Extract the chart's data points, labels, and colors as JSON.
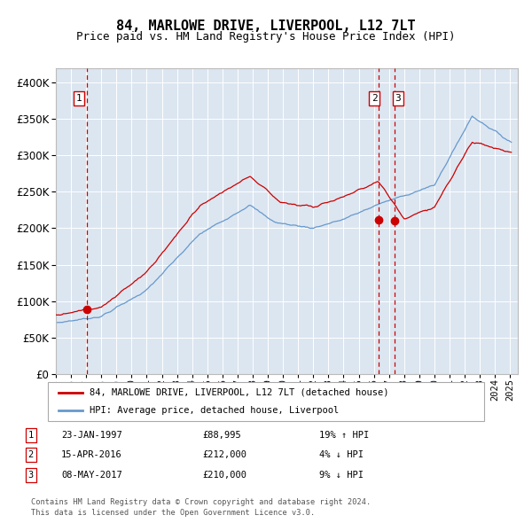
{
  "title": "84, MARLOWE DRIVE, LIVERPOOL, L12 7LT",
  "subtitle": "Price paid vs. HM Land Registry's House Price Index (HPI)",
  "legend_red": "84, MARLOWE DRIVE, LIVERPOOL, L12 7LT (detached house)",
  "legend_blue": "HPI: Average price, detached house, Liverpool",
  "footer1": "Contains HM Land Registry data © Crown copyright and database right 2024.",
  "footer2": "This data is licensed under the Open Government Licence v3.0.",
  "transactions": [
    {
      "num": 1,
      "date": "23-JAN-1997",
      "price": 88995,
      "hpi_rel": "19% ↑ HPI",
      "x_year": 1997.06
    },
    {
      "num": 2,
      "date": "15-APR-2016",
      "price": 212000,
      "hpi_rel": "4% ↓ HPI",
      "x_year": 2016.29
    },
    {
      "num": 3,
      "date": "08-MAY-2017",
      "price": 210000,
      "hpi_rel": "9% ↓ HPI",
      "x_year": 2017.36
    }
  ],
  "ylim": [
    0,
    420000
  ],
  "yticks": [
    0,
    50000,
    100000,
    150000,
    200000,
    250000,
    300000,
    350000,
    400000
  ],
  "xlim_start": 1995.0,
  "xlim_end": 2025.5,
  "plot_bg": "#dce6f1",
  "grid_color": "#ffffff",
  "red_color": "#cc0000",
  "blue_color": "#6699cc",
  "vline_color": "#cc0000",
  "box_color": "#cc0000",
  "title_fontsize": 11,
  "subtitle_fontsize": 9
}
